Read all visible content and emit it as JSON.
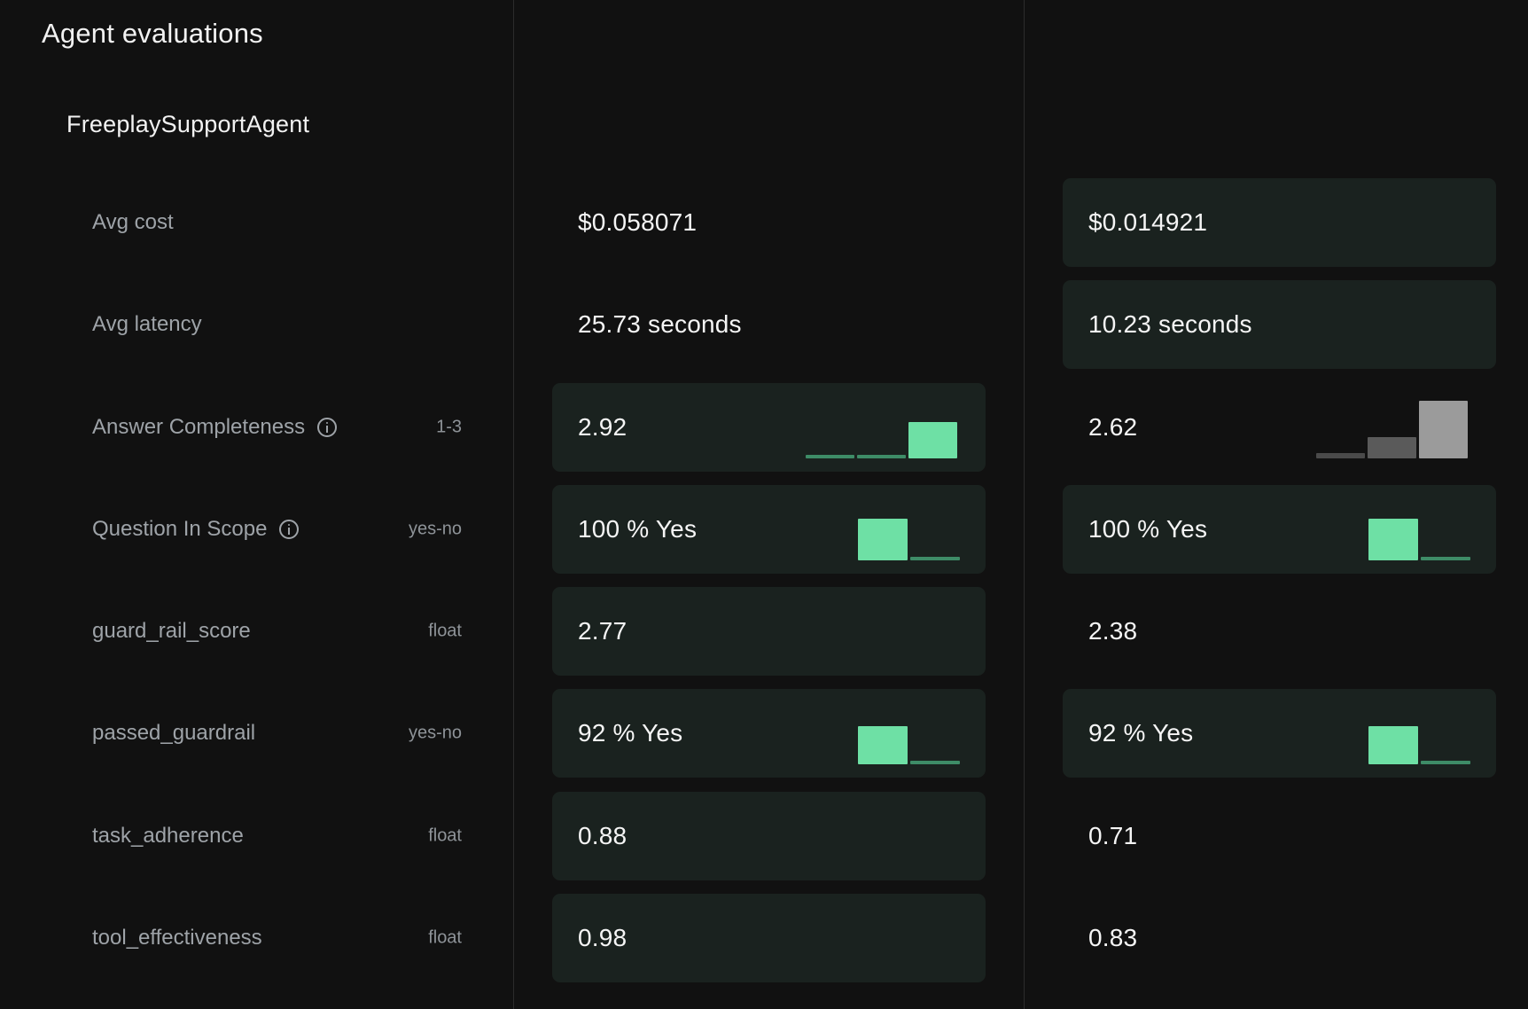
{
  "page": {
    "title": "Agent evaluations"
  },
  "agent": {
    "name": "FreeplaySupportAgent"
  },
  "colors": {
    "background": "#111111",
    "highlight_cell": "#1a221f",
    "accent_green": "#6ee0a5",
    "muted_green": "#3e8c67",
    "neutral_gray": "#9b9b9b"
  },
  "rows": [
    {
      "label": "Avg cost",
      "type": "",
      "has_info": false,
      "col1": {
        "value": "$0.058071",
        "highlight": false
      },
      "col2": {
        "value": "$0.014921",
        "highlight": true
      }
    },
    {
      "label": "Avg latency",
      "type": "",
      "has_info": false,
      "col1": {
        "value": "25.73 seconds",
        "highlight": false
      },
      "col2": {
        "value": "10.23 seconds",
        "highlight": true
      }
    },
    {
      "label": "Answer Completeness",
      "type": "1-3",
      "has_info": true,
      "col1": {
        "value": "2.92",
        "highlight": true,
        "distribution": {
          "categories": [
            "1",
            "2",
            "3"
          ],
          "fractions": [
            0.02,
            0.02,
            0.96
          ],
          "color": "green"
        }
      },
      "col2": {
        "value": "2.62",
        "highlight": false,
        "distribution": {
          "categories": [
            "1",
            "2",
            "3"
          ],
          "fractions": [
            0.06,
            0.25,
            0.69
          ],
          "color": "gray"
        }
      }
    },
    {
      "label": "Question In Scope",
      "type": "yes-no",
      "has_info": true,
      "col1": {
        "value": "100 % Yes",
        "highlight": true,
        "distribution": {
          "categories": [
            "yes",
            "no"
          ],
          "fractions": [
            1.0,
            0.0
          ],
          "color": "green"
        }
      },
      "col2": {
        "value": "100 % Yes",
        "highlight": true,
        "distribution": {
          "categories": [
            "yes",
            "no"
          ],
          "fractions": [
            1.0,
            0.0
          ],
          "color": "green"
        }
      }
    },
    {
      "label": "guard_rail_score",
      "type": "float",
      "has_info": false,
      "col1": {
        "value": "2.77",
        "highlight": true
      },
      "col2": {
        "value": "2.38",
        "highlight": false
      }
    },
    {
      "label": "passed_guardrail",
      "type": "yes-no",
      "has_info": false,
      "col1": {
        "value": "92 % Yes",
        "highlight": true,
        "distribution": {
          "categories": [
            "yes",
            "no"
          ],
          "fractions": [
            0.92,
            0.08
          ],
          "color": "green"
        }
      },
      "col2": {
        "value": "92 % Yes",
        "highlight": true,
        "distribution": {
          "categories": [
            "yes",
            "no"
          ],
          "fractions": [
            0.92,
            0.08
          ],
          "color": "green"
        }
      }
    },
    {
      "label": "task_adherence",
      "type": "float",
      "has_info": false,
      "col1": {
        "value": "0.88",
        "highlight": true
      },
      "col2": {
        "value": "0.71",
        "highlight": false
      }
    },
    {
      "label": "tool_effectiveness",
      "type": "float",
      "has_info": false,
      "col1": {
        "value": "0.98",
        "highlight": true
      },
      "col2": {
        "value": "0.83",
        "highlight": false
      }
    }
  ]
}
